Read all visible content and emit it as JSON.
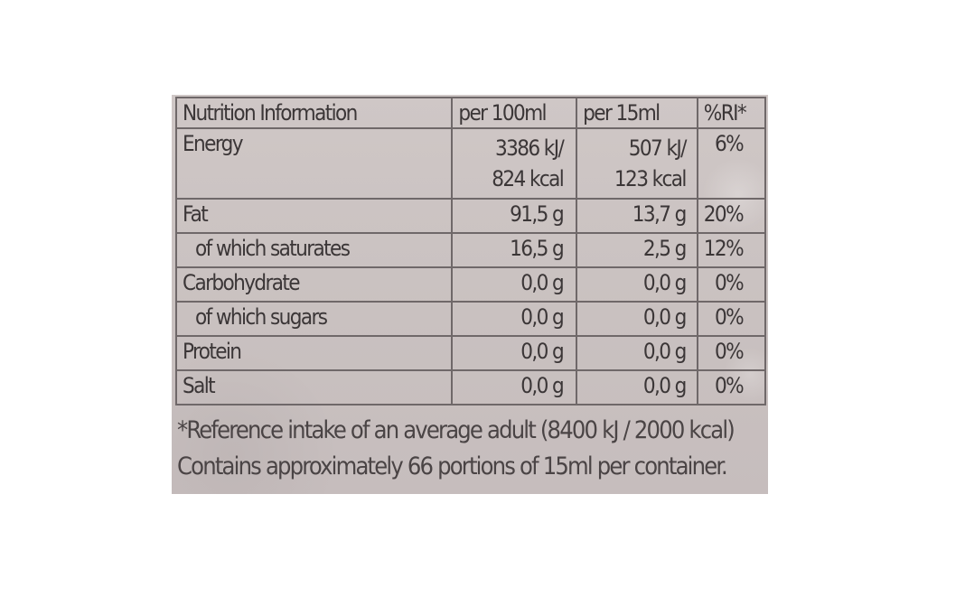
{
  "table": {
    "headers": {
      "name": "Nutrition Information",
      "per100": "per 100ml",
      "per15": "per 15ml",
      "ri": "%RI*"
    },
    "energy": {
      "label": "Energy",
      "per100_kj": "3386 kJ/",
      "per100_kcal": "824 kcal",
      "per15_kj": "507 kJ/",
      "per15_kcal": "123 kcal",
      "ri": "6%"
    },
    "rows": [
      {
        "label": "Fat",
        "per100": "91,5 g",
        "per15": "13,7 g",
        "ri": "20%"
      },
      {
        "label": "of which saturates",
        "per100": "16,5 g",
        "per15": "2,5 g",
        "ri": "12%"
      },
      {
        "label": "Carbohydrate",
        "per100": "0,0 g",
        "per15": "0,0 g",
        "ri": "0%"
      },
      {
        "label": "of which sugars",
        "per100": "0,0 g",
        "per15": "0,0 g",
        "ri": "0%"
      },
      {
        "label": "Protein",
        "per100": "0,0 g",
        "per15": "0,0 g",
        "ri": "0%"
      },
      {
        "label": "Salt",
        "per100": "0,0 g",
        "per15": "0,0 g",
        "ri": "0%"
      }
    ]
  },
  "footnote": {
    "line1": "*Reference intake of an average adult (8400 kJ / 2000 kcal)",
    "line2": "Contains approximately 66 portions of 15ml per container."
  }
}
